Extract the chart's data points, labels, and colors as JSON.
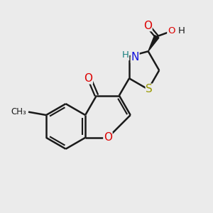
{
  "background_color": "#ebebeb",
  "bond_color": "#1a1a1a",
  "bond_width": 1.8,
  "figsize": [
    3.0,
    3.0
  ],
  "dpi": 100,
  "xlim": [
    0,
    10
  ],
  "ylim": [
    0,
    10
  ]
}
